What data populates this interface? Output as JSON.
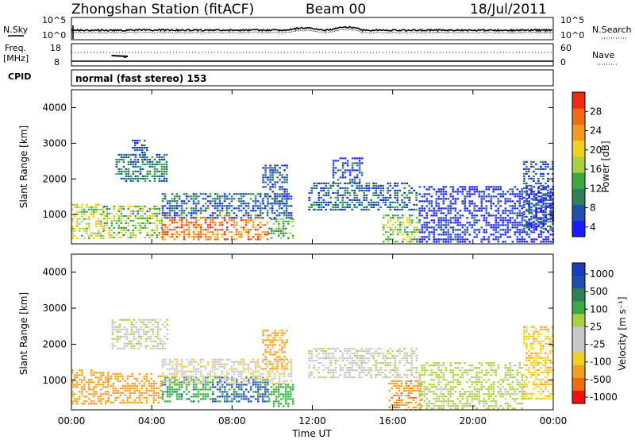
{
  "header": {
    "station_title": "Zhongshan Station (fitACF)",
    "beam": "Beam 00",
    "date": "18/Jul/2011"
  },
  "noise_panel": {
    "left_label": "N.Sky",
    "right_label": "N.Search",
    "tick_top": "10^5",
    "tick_bottom": "10^0"
  },
  "freq_panel": {
    "left_label_top": "Freq.",
    "left_label_bottom": "[MHz]",
    "right_label": "Nave",
    "left_ticks": [
      "18",
      "8"
    ],
    "right_ticks": [
      "60",
      "0"
    ]
  },
  "cpid": {
    "label": "CPID",
    "program": "normal (fast stereo) 153"
  },
  "colors": {
    "power": [
      "#1a1aff",
      "#1f4fb0",
      "#2f7f5a",
      "#3aaa40",
      "#a8d040",
      "#f0d020",
      "#f29a20",
      "#f06a10",
      "#ee2a10"
    ],
    "velocity": [
      "#f01010",
      "#f06a10",
      "#f0a020",
      "#f0d020",
      "#c8c8c8",
      "#c8c8c8",
      "#a8d040",
      "#3aaa40",
      "#2f7f5a",
      "#1f4fb0",
      "#1a3ac0"
    ]
  },
  "chart_data": [
    {
      "type": "heatmap",
      "name_panel": "power",
      "xlabel": "",
      "ylabel": "Slant Range [km]",
      "xlim": [
        0,
        24
      ],
      "ylim": [
        180,
        4500
      ],
      "y_ticks": [
        1000,
        2000,
        3000,
        4000
      ],
      "colorbar": {
        "label": "Power [dB]",
        "range": [
          2,
          32
        ],
        "ticks": [
          4,
          8,
          12,
          16,
          20,
          24,
          28
        ]
      },
      "regions": [
        {
          "t0": 0.0,
          "t1": 1.6,
          "r0": 350,
          "r1": 1300,
          "level": 18
        },
        {
          "t0": 1.6,
          "t1": 4.5,
          "r0": 350,
          "r1": 1250,
          "level": 16
        },
        {
          "t0": 4.5,
          "t1": 9.8,
          "r0": 300,
          "r1": 1000,
          "level": 26
        },
        {
          "t0": 9.8,
          "t1": 11.0,
          "r0": 300,
          "r1": 900,
          "level": 14
        },
        {
          "t0": 2.2,
          "t1": 4.8,
          "r0": 1900,
          "r1": 2700,
          "level": 10
        },
        {
          "t0": 3.0,
          "t1": 3.8,
          "r0": 2500,
          "r1": 3100,
          "level": 6
        },
        {
          "t0": 4.5,
          "t1": 11.0,
          "r0": 900,
          "r1": 1600,
          "level": 8
        },
        {
          "t0": 9.5,
          "t1": 10.8,
          "r0": 1300,
          "r1": 2400,
          "level": 7
        },
        {
          "t0": 11.8,
          "t1": 17.2,
          "r0": 1100,
          "r1": 1900,
          "level": 8
        },
        {
          "t0": 13.0,
          "t1": 14.5,
          "r0": 1900,
          "r1": 2600,
          "level": 6
        },
        {
          "t0": 15.5,
          "t1": 17.3,
          "r0": 200,
          "r1": 1000,
          "level": 16
        },
        {
          "t0": 17.3,
          "t1": 24.0,
          "r0": 200,
          "r1": 1800,
          "level": 4
        },
        {
          "t0": 22.5,
          "t1": 24.0,
          "r0": 500,
          "r1": 2500,
          "level": 7
        }
      ]
    },
    {
      "type": "heatmap",
      "name_panel": "velocity",
      "xlabel": "Time UT",
      "ylabel": "Slant Range [km]",
      "xlim": [
        0,
        24
      ],
      "ylim": [
        180,
        4500
      ],
      "x_tick_labels": [
        "00:00",
        "04:00",
        "08:00",
        "12:00",
        "16:00",
        "20:00",
        "00:00"
      ],
      "y_ticks": [
        1000,
        2000,
        3000,
        4000
      ],
      "colorbar": {
        "label": "Velocity [m s⁻¹]",
        "tick_labels": [
          "1000",
          "500",
          "100",
          "25",
          "-25",
          "-100",
          "-500",
          "-1000"
        ]
      },
      "regions": [
        {
          "t0": 0.0,
          "t1": 1.8,
          "r0": 350,
          "r1": 1300,
          "level": -300
        },
        {
          "t0": 1.8,
          "t1": 4.5,
          "r0": 400,
          "r1": 1200,
          "level": -200
        },
        {
          "t0": 4.5,
          "t1": 7.0,
          "r0": 400,
          "r1": 1100,
          "level": 400
        },
        {
          "t0": 7.0,
          "t1": 9.8,
          "r0": 400,
          "r1": 1100,
          "level": 600
        },
        {
          "t0": 9.8,
          "t1": 11.0,
          "r0": 300,
          "r1": 900,
          "level": 200
        },
        {
          "t0": 2.0,
          "t1": 4.8,
          "r0": 1900,
          "r1": 2700,
          "level": 10
        },
        {
          "t0": 4.5,
          "t1": 11.0,
          "r0": 900,
          "r1": 1600,
          "level": -10
        },
        {
          "t0": 9.5,
          "t1": 10.8,
          "r0": 1300,
          "r1": 2400,
          "level": -150
        },
        {
          "t0": 11.8,
          "t1": 17.2,
          "r0": 1100,
          "r1": 1900,
          "level": 5
        },
        {
          "t0": 15.8,
          "t1": 17.4,
          "r0": 200,
          "r1": 1000,
          "level": -400
        },
        {
          "t0": 17.3,
          "t1": 22.5,
          "r0": 200,
          "r1": 1500,
          "level": 50
        },
        {
          "t0": 22.5,
          "t1": 24.0,
          "r0": 500,
          "r1": 2500,
          "level": -80
        }
      ]
    }
  ]
}
